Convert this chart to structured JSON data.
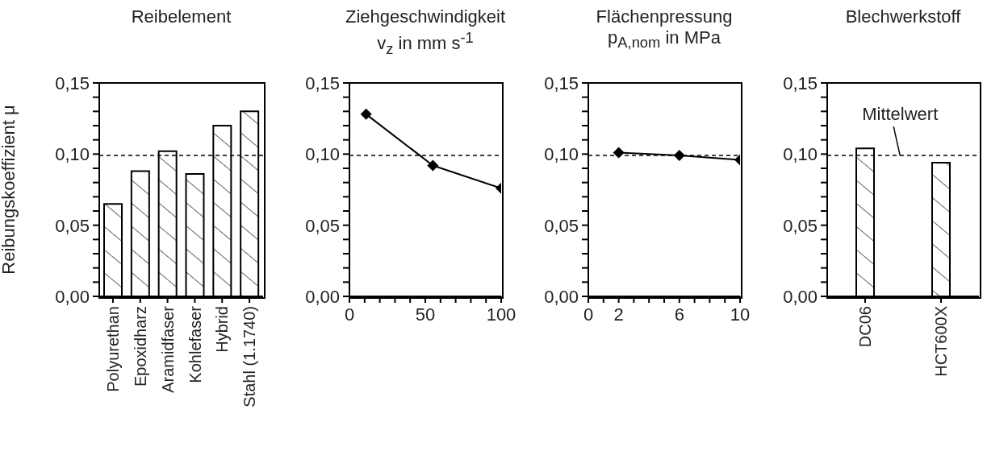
{
  "chart_data": [
    {
      "type": "bar",
      "title": "Reibelement",
      "ylabel": "Reibungskoeffizient μ",
      "categories": [
        "Polyurethan",
        "Epoxidharz",
        "Aramidfaser",
        "Kohlefaser",
        "Hybrid",
        "Stahl (1.1740)"
      ],
      "values": [
        0.065,
        0.088,
        0.102,
        0.086,
        0.12,
        0.13
      ],
      "color": "#000000",
      "ylim": [
        0,
        0.15
      ],
      "yticks": [
        {
          "value": 0,
          "label": "0,00"
        },
        {
          "value": 0.01,
          "label": null
        },
        {
          "value": 0.02,
          "label": null
        },
        {
          "value": 0.03,
          "label": null
        },
        {
          "value": 0.04,
          "label": null
        },
        {
          "value": 0.05,
          "label": "0,05"
        },
        {
          "value": 0.06,
          "label": null
        },
        {
          "value": 0.07,
          "label": null
        },
        {
          "value": 0.08,
          "label": null
        },
        {
          "value": 0.09,
          "label": null
        },
        {
          "value": 0.1,
          "label": "0,10"
        },
        {
          "value": 0.11,
          "label": null
        },
        {
          "value": 0.12,
          "label": null
        },
        {
          "value": 0.13,
          "label": null
        },
        {
          "value": 0.14,
          "label": null
        },
        {
          "value": 0.15,
          "label": "0,15"
        }
      ],
      "ref_lines": [
        {
          "axis": "y",
          "value": 0.099,
          "line_style": "dashed",
          "color": "#000000"
        }
      ]
    },
    {
      "type": "line",
      "title": "Ziehgeschwindigkeit",
      "subtitle": "v$_{z}$ in mm s$^{-1}$",
      "x": [
        11,
        55,
        100
      ],
      "values": [
        0.128,
        0.092,
        0.076
      ],
      "color": "#000000",
      "marker": "diamond",
      "xlim": [
        0,
        100
      ],
      "xticks": [
        0,
        {
          "value": 10,
          "label": null
        },
        {
          "value": 20,
          "label": null
        },
        {
          "value": 30,
          "label": null
        },
        {
          "value": 40,
          "label": null
        },
        50,
        {
          "value": 60,
          "label": null
        },
        {
          "value": 70,
          "label": null
        },
        {
          "value": 80,
          "label": null
        },
        {
          "value": 90,
          "label": null
        },
        100
      ],
      "ylim": [
        0,
        0.15
      ],
      "yticks": [
        {
          "value": 0,
          "label": "0,00"
        },
        {
          "value": 0.01,
          "label": null
        },
        {
          "value": 0.02,
          "label": null
        },
        {
          "value": 0.03,
          "label": null
        },
        {
          "value": 0.04,
          "label": null
        },
        {
          "value": 0.05,
          "label": "0,05"
        },
        {
          "value": 0.06,
          "label": null
        },
        {
          "value": 0.07,
          "label": null
        },
        {
          "value": 0.08,
          "label": null
        },
        {
          "value": 0.09,
          "label": null
        },
        {
          "value": 0.1,
          "label": "0,10"
        },
        {
          "value": 0.11,
          "label": null
        },
        {
          "value": 0.12,
          "label": null
        },
        {
          "value": 0.13,
          "label": null
        },
        {
          "value": 0.14,
          "label": null
        },
        {
          "value": 0.15,
          "label": "0,15"
        }
      ],
      "ref_lines": [
        {
          "axis": "y",
          "value": 0.099,
          "line_style": "dashed",
          "color": "#000000"
        }
      ]
    },
    {
      "type": "line",
      "title": "Flächenpressung",
      "subtitle": "p$_{A,nom}$ in MPa",
      "x": [
        2,
        6,
        10
      ],
      "values": [
        0.101,
        0.099,
        0.096
      ],
      "color": "#000000",
      "marker": "diamond",
      "xlim": [
        0,
        10
      ],
      "xticks": [
        0,
        {
          "value": 1,
          "label": null
        },
        2,
        {
          "value": 3,
          "label": null
        },
        {
          "value": 4,
          "label": null
        },
        {
          "value": 5,
          "label": null
        },
        6,
        {
          "value": 7,
          "label": null
        },
        {
          "value": 8,
          "label": null
        },
        {
          "value": 9,
          "label": null
        },
        10
      ],
      "ylim": [
        0,
        0.15
      ],
      "yticks": [
        {
          "value": 0,
          "label": "0,00"
        },
        {
          "value": 0.01,
          "label": null
        },
        {
          "value": 0.02,
          "label": null
        },
        {
          "value": 0.03,
          "label": null
        },
        {
          "value": 0.04,
          "label": null
        },
        {
          "value": 0.05,
          "label": "0,05"
        },
        {
          "value": 0.06,
          "label": null
        },
        {
          "value": 0.07,
          "label": null
        },
        {
          "value": 0.08,
          "label": null
        },
        {
          "value": 0.09,
          "label": null
        },
        {
          "value": 0.1,
          "label": "0,10"
        },
        {
          "value": 0.11,
          "label": null
        },
        {
          "value": 0.12,
          "label": null
        },
        {
          "value": 0.13,
          "label": null
        },
        {
          "value": 0.14,
          "label": null
        },
        {
          "value": 0.15,
          "label": "0,15"
        }
      ],
      "ref_lines": [
        {
          "axis": "y",
          "value": 0.099,
          "line_style": "dashed",
          "color": "#000000"
        }
      ]
    },
    {
      "type": "bar",
      "title": "Blechwerkstoff",
      "categories": [
        "DC06",
        "HCT600X"
      ],
      "values": [
        0.104,
        0.094
      ],
      "color": "#000000",
      "ylim": [
        0,
        0.15
      ],
      "yticks": [
        {
          "value": 0,
          "label": "0,00"
        },
        {
          "value": 0.01,
          "label": null
        },
        {
          "value": 0.02,
          "label": null
        },
        {
          "value": 0.03,
          "label": null
        },
        {
          "value": 0.04,
          "label": null
        },
        {
          "value": 0.05,
          "label": "0,05"
        },
        {
          "value": 0.06,
          "label": null
        },
        {
          "value": 0.07,
          "label": null
        },
        {
          "value": 0.08,
          "label": null
        },
        {
          "value": 0.09,
          "label": null
        },
        {
          "value": 0.1,
          "label": "0,10"
        },
        {
          "value": 0.11,
          "label": null
        },
        {
          "value": 0.12,
          "label": null
        },
        {
          "value": 0.13,
          "label": null
        },
        {
          "value": 0.14,
          "label": null
        },
        {
          "value": 0.15,
          "label": "0,15"
        }
      ],
      "ref_lines": [
        {
          "axis": "y",
          "value": 0.099,
          "line_style": "dashed",
          "color": "#000000",
          "label": "Mittelwert"
        }
      ]
    }
  ]
}
